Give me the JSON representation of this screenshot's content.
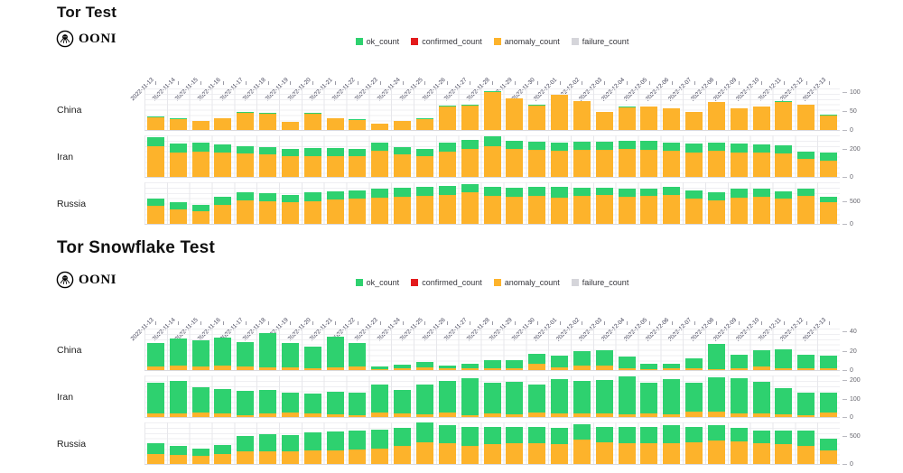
{
  "colors": {
    "ok": "#2ED16F",
    "confirmed": "#E31A1C",
    "anomaly": "#FDB32B",
    "failure": "#D5D5DA"
  },
  "legend": {
    "items": [
      {
        "key": "ok",
        "label": "ok_count"
      },
      {
        "key": "confirmed",
        "label": "confirmed_count"
      },
      {
        "key": "anomaly",
        "label": "anomaly_count"
      },
      {
        "key": "failure",
        "label": "failure_count"
      }
    ]
  },
  "chart_data": [
    {
      "type": "bar",
      "stacked": true,
      "title": "Tor Test",
      "brand": "OONI",
      "legend_position": "top-center",
      "categories": [
        "2022-11-13",
        "2022-11-14",
        "2022-11-15",
        "2022-11-16",
        "2022-11-17",
        "2022-11-18",
        "2022-11-19",
        "2022-11-20",
        "2022-11-21",
        "2022-11-22",
        "2022-11-23",
        "2022-11-24",
        "2022-11-25",
        "2022-11-26",
        "2022-11-27",
        "2022-11-28",
        "2022-11-29",
        "2022-11-30",
        "2022-12-01",
        "2022-12-02",
        "2022-12-03",
        "2022-12-04",
        "2022-12-05",
        "2022-12-06",
        "2022-12-07",
        "2022-12-08",
        "2022-12-09",
        "2022-12-10",
        "2022-12-11",
        "2022-12-12",
        "2022-12-13"
      ],
      "rows": [
        {
          "label": "China",
          "ymax": 112,
          "ticks": [
            0,
            50,
            100
          ],
          "series": [
            {
              "name": "anomaly_count",
              "color": "anomaly",
              "values": [
                34,
                29,
                24,
                31,
                46,
                44,
                21,
                44,
                32,
                26,
                17,
                24,
                29,
                63,
                65,
                101,
                83,
                64,
                93,
                76,
                48,
                60,
                61,
                58,
                48,
                73,
                58,
                63,
                75,
                66,
                38
              ]
            },
            {
              "name": "ok_count",
              "color": "ok",
              "values": [
                1,
                1,
                0,
                1,
                1,
                2,
                0,
                1,
                0,
                2,
                0,
                0,
                1,
                1,
                1,
                2,
                1,
                2,
                1,
                1,
                0,
                1,
                2,
                0,
                0,
                1,
                0,
                0,
                1,
                1,
                2
              ]
            }
          ]
        },
        {
          "label": "Iran",
          "ymax": 300,
          "ticks": [
            0,
            200
          ],
          "series": [
            {
              "name": "anomaly_count",
              "color": "anomaly",
              "values": [
                215,
                175,
                180,
                170,
                165,
                160,
                145,
                150,
                150,
                148,
                185,
                158,
                150,
                180,
                200,
                215,
                195,
                190,
                185,
                190,
                190,
                195,
                190,
                185,
                175,
                185,
                175,
                170,
                165,
                130,
                115
              ]
            },
            {
              "name": "ok_count",
              "color": "ok",
              "values": [
                65,
                60,
                62,
                58,
                55,
                50,
                52,
                55,
                55,
                52,
                60,
                55,
                48,
                60,
                65,
                70,
                58,
                62,
                60,
                60,
                62,
                62,
                65,
                58,
                62,
                58,
                62,
                60,
                58,
                48,
                55
              ]
            }
          ]
        },
        {
          "label": "Russia",
          "ymax": 950,
          "ticks": [
            0,
            500
          ],
          "series": [
            {
              "name": "anomaly_count",
              "color": "anomaly",
              "values": [
                400,
                330,
                290,
                430,
                520,
                510,
                480,
                510,
                540,
                560,
                580,
                600,
                620,
                640,
                700,
                620,
                600,
                620,
                580,
                620,
                640,
                600,
                620,
                640,
                560,
                520,
                580,
                600,
                560,
                620,
                480
              ]
            },
            {
              "name": "ok_count",
              "color": "ok",
              "values": [
                160,
                150,
                130,
                170,
                180,
                180,
                160,
                190,
                190,
                190,
                200,
                200,
                200,
                200,
                200,
                200,
                200,
                200,
                240,
                180,
                160,
                180,
                160,
                180,
                180,
                180,
                200,
                180,
                160,
                160,
                120
              ]
            }
          ]
        }
      ]
    },
    {
      "type": "bar",
      "stacked": true,
      "title": "Tor Snowflake Test",
      "brand": "OONI",
      "legend_position": "top-center",
      "categories": [
        "2022-11-13",
        "2022-11-14",
        "2022-11-15",
        "2022-11-16",
        "2022-11-17",
        "2022-11-18",
        "2022-11-19",
        "2022-11-20",
        "2022-11-21",
        "2022-11-22",
        "2022-11-23",
        "2022-11-24",
        "2022-11-25",
        "2022-11-26",
        "2022-11-27",
        "2022-11-28",
        "2022-11-29",
        "2022-11-30",
        "2022-12-01",
        "2022-12-02",
        "2022-12-03",
        "2022-12-04",
        "2022-12-05",
        "2022-12-06",
        "2022-12-07",
        "2022-12-08",
        "2022-12-09",
        "2022-12-10",
        "2022-12-11",
        "2022-12-12",
        "2022-12-13"
      ],
      "rows": [
        {
          "label": "China",
          "ymax": 44,
          "ticks": [
            0,
            20,
            40
          ],
          "series": [
            {
              "name": "anomaly_count",
              "color": "anomaly",
              "values": [
                4,
                5,
                4,
                5,
                4,
                3,
                3,
                2,
                3,
                4,
                1,
                2,
                3,
                2,
                2,
                2,
                2,
                7,
                3,
                5,
                5,
                2,
                1,
                2,
                2,
                1,
                2,
                4,
                2,
                2,
                2
              ]
            },
            {
              "name": "ok_count",
              "color": "ok",
              "values": [
                24,
                28,
                27,
                29,
                25,
                35,
                25,
                22,
                32,
                24,
                3,
                4,
                5,
                3,
                5,
                8,
                8,
                10,
                12,
                15,
                16,
                12,
                6,
                5,
                10,
                26,
                14,
                17,
                20,
                14,
                13
              ]
            }
          ]
        },
        {
          "label": "Iran",
          "ymax": 230,
          "ticks": [
            0,
            100,
            200
          ],
          "series": [
            {
              "name": "anomaly_count",
              "color": "anomaly",
              "values": [
                20,
                22,
                25,
                20,
                12,
                18,
                25,
                18,
                15,
                12,
                25,
                18,
                15,
                25,
                12,
                20,
                15,
                25,
                20,
                22,
                18,
                15,
                18,
                15,
                28,
                30,
                20,
                22,
                15,
                10,
                25
              ]
            },
            {
              "name": "ok_count",
              "color": "ok",
              "values": [
                165,
                173,
                135,
                130,
                128,
                127,
                105,
                110,
                123,
                118,
                150,
                127,
                160,
                170,
                198,
                165,
                175,
                150,
                185,
                173,
                182,
                205,
                167,
                190,
                157,
                185,
                190,
                168,
                140,
                120,
                105
              ]
            }
          ]
        },
        {
          "label": "Russia",
          "ymax": 760,
          "ticks": [
            0,
            500
          ],
          "series": [
            {
              "name": "anomaly_count",
              "color": "anomaly",
              "values": [
                180,
                170,
                150,
                180,
                220,
                230,
                230,
                240,
                250,
                260,
                280,
                330,
                390,
                380,
                330,
                360,
                380,
                370,
                360,
                430,
                390,
                380,
                370,
                380,
                390,
                420,
                400,
                380,
                350,
                330,
                250
              ]
            },
            {
              "name": "ok_count",
              "color": "ok",
              "values": [
                200,
                150,
                120,
                160,
                280,
                300,
                290,
                320,
                340,
                340,
                340,
                320,
                350,
                310,
                330,
                300,
                280,
                300,
                280,
                290,
                280,
                290,
                300,
                310,
                270,
                280,
                250,
                220,
                250,
                270,
                200
              ]
            }
          ]
        }
      ]
    }
  ]
}
